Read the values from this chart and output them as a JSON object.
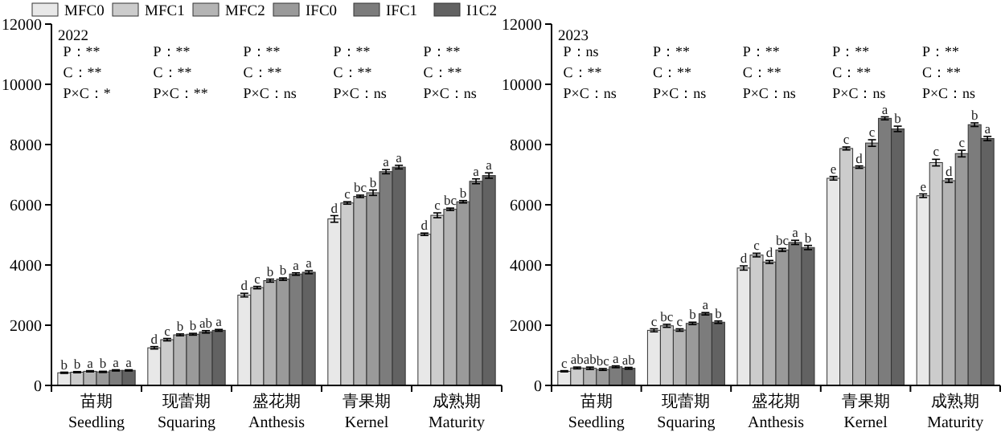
{
  "chart_data": [
    {
      "type": "bar",
      "categories": [
        "苗期\nSeedling",
        "现蕾期\nSquaring",
        "盛花期\nAnthesis",
        "青果期\nKernel",
        "成熟期\nMaturity"
      ],
      "ylim": [
        0,
        12000
      ],
      "yticks": [
        0,
        2000,
        4000,
        6000,
        8000,
        10000,
        12000
      ],
      "legend": "top",
      "annotations": [
        "2022",
        "P：**",
        "C：**",
        "P×C：*",
        "P：**",
        "C：**",
        "P×C：**",
        "P：**",
        "C：**",
        "P×C：ns",
        "P：**",
        "C：**",
        "P×C：ns",
        "P：**",
        "C：**",
        "P×C：ns"
      ],
      "series": [
        {
          "name": "MFC0",
          "color": "#e8e8e8",
          "values": [
            420,
            1250,
            3000,
            5530,
            5020
          ],
          "errors": [
            20,
            40,
            60,
            110,
            40
          ],
          "value_labels": [
            "b",
            "d",
            "d",
            "d",
            "d"
          ]
        },
        {
          "name": "MFC1",
          "color": "#cccccc",
          "values": [
            440,
            1520,
            3250,
            6060,
            5650
          ],
          "errors": [
            20,
            40,
            40,
            40,
            80
          ],
          "value_labels": [
            "b",
            "c",
            "c",
            "c",
            "c"
          ]
        },
        {
          "name": "MFC2",
          "color": "#b4b4b4",
          "values": [
            470,
            1680,
            3480,
            6280,
            5850
          ],
          "errors": [
            20,
            30,
            50,
            40,
            40
          ],
          "value_labels": [
            "a",
            "b",
            "b",
            "bc",
            "bc"
          ]
        },
        {
          "name": "IFC0",
          "color": "#9a9a9a",
          "values": [
            450,
            1700,
            3530,
            6400,
            6100
          ],
          "errors": [
            20,
            30,
            40,
            90,
            40
          ],
          "value_labels": [
            "b",
            "b",
            "b",
            "b",
            "b"
          ]
        },
        {
          "name": "IFC1",
          "color": "#7c7c7c",
          "values": [
            500,
            1780,
            3700,
            7100,
            6780
          ],
          "errors": [
            20,
            40,
            40,
            70,
            80
          ],
          "value_labels": [
            "a",
            "ab",
            "a",
            "a",
            "a"
          ]
        },
        {
          "name": "I1C2",
          "color": "#626262",
          "values": [
            500,
            1830,
            3760,
            7250,
            6970
          ],
          "errors": [
            20,
            30,
            50,
            60,
            90
          ],
          "value_labels": [
            "a",
            "a",
            "a",
            "a",
            "a"
          ]
        }
      ]
    },
    {
      "type": "bar",
      "categories": [
        "苗期\nSeedling",
        "现蕾期\nSquaring",
        "盛花期\nAnthesis",
        "青果期\nKernel",
        "成熟期\nMaturity"
      ],
      "ylim": [
        0,
        12000
      ],
      "yticks": [
        0,
        2000,
        4000,
        6000,
        8000,
        10000,
        12000
      ],
      "annotations": [
        "2023",
        "P：ns",
        "C：**",
        "P×C：ns",
        "P：**",
        "C：**",
        "P×C：ns",
        "P：**",
        "C：**",
        "P×C：ns",
        "P：**",
        "C：**",
        "P×C：ns",
        "P：**",
        "C：**",
        "P×C：ns"
      ],
      "series": [
        {
          "color": "#e8e8e8",
          "values": [
            470,
            1830,
            3900,
            6880,
            6300
          ],
          "errors": [
            20,
            50,
            70,
            60,
            60
          ],
          "value_labels": [
            "c",
            "c",
            "d",
            "e",
            "e"
          ]
        },
        {
          "color": "#cccccc",
          "values": [
            580,
            1980,
            4330,
            7870,
            7400
          ],
          "errors": [
            30,
            50,
            60,
            50,
            110
          ],
          "value_labels": [
            "ab",
            "bc",
            "c",
            "c",
            "c"
          ]
        },
        {
          "color": "#b4b4b4",
          "values": [
            570,
            1840,
            4100,
            7250,
            6800
          ],
          "errors": [
            40,
            40,
            50,
            40,
            60
          ],
          "value_labels": [
            "ab",
            "c",
            "d",
            "d",
            "d"
          ]
        },
        {
          "color": "#9a9a9a",
          "values": [
            530,
            2060,
            4500,
            8050,
            7700
          ],
          "errors": [
            30,
            40,
            50,
            110,
            110
          ],
          "value_labels": [
            "bc",
            "b",
            "bc",
            "c",
            "c"
          ]
        },
        {
          "color": "#7c7c7c",
          "values": [
            620,
            2380,
            4750,
            8870,
            8660
          ],
          "errors": [
            30,
            40,
            70,
            50,
            60
          ],
          "value_labels": [
            "a",
            "a",
            "a",
            "a",
            "b"
          ]
        },
        {
          "color": "#626262",
          "values": [
            570,
            2100,
            4580,
            8520,
            8200
          ],
          "errors": [
            30,
            40,
            70,
            90,
            70
          ],
          "value_labels": [
            "ab",
            "b",
            "b",
            "b",
            "a"
          ]
        }
      ]
    }
  ]
}
